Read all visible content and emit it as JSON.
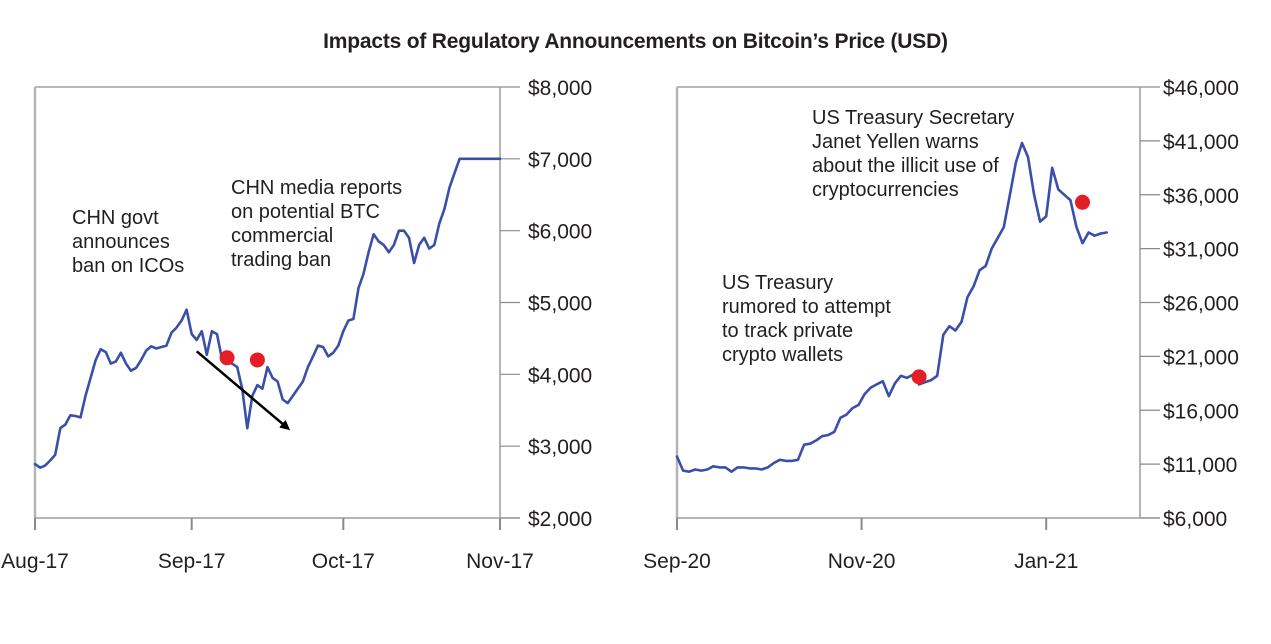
{
  "title": "Impacts of Regulatory Announcements on Bitcoin’s Price (USD)",
  "colors": {
    "line": "#3a4fa8",
    "marker": "#e31e24",
    "arrow": "#000000",
    "axis": "#8a8a8a",
    "text": "#231f20"
  },
  "chart_data": [
    {
      "type": "line",
      "title": "",
      "xlabel": "",
      "ylabel": "",
      "x_unit": "days since 2017-08-01",
      "x_range": [
        0,
        92
      ],
      "ylim": [
        2000,
        8000
      ],
      "y_ticks": [
        2000,
        3000,
        4000,
        5000,
        6000,
        7000,
        8000
      ],
      "y_tick_labels": [
        "$2,000",
        "$3,000",
        "$4,000",
        "$5,000",
        "$6,000",
        "$7,000",
        "$8,000"
      ],
      "y_axis_side": "right",
      "x_ticks": [
        0,
        31,
        61,
        92
      ],
      "x_tick_labels": [
        "Aug-17",
        "Sep-17",
        "Oct-17",
        "Nov-17"
      ],
      "grid": false,
      "series": [
        {
          "name": "BTC price",
          "x": [
            0,
            1,
            2,
            3,
            4,
            5,
            6,
            7,
            8,
            9,
            10,
            11,
            12,
            13,
            14,
            15,
            16,
            17,
            18,
            19,
            20,
            21,
            22,
            23,
            24,
            25,
            26,
            27,
            28,
            29,
            30,
            31,
            32,
            33,
            34,
            35,
            36,
            37,
            38,
            39,
            40,
            41,
            42,
            43,
            44,
            45,
            46,
            47,
            48,
            49,
            50,
            51,
            52,
            53,
            54,
            55,
            56,
            57,
            58,
            59,
            60,
            61,
            62,
            63,
            64,
            65,
            66,
            67,
            68,
            69,
            70,
            71,
            72,
            73,
            74,
            75,
            76,
            77,
            78,
            79,
            80,
            81,
            82,
            83,
            84,
            85,
            86,
            87,
            88,
            89,
            90,
            91,
            92
          ],
          "y": [
            2750,
            2700,
            2730,
            2800,
            2880,
            3250,
            3300,
            3430,
            3420,
            3400,
            3700,
            3950,
            4200,
            4350,
            4310,
            4150,
            4180,
            4300,
            4150,
            4050,
            4090,
            4200,
            4330,
            4390,
            4360,
            4380,
            4400,
            4580,
            4650,
            4750,
            4900,
            4560,
            4480,
            4600,
            4270,
            4600,
            4560,
            4210,
            4170,
            4150,
            4100,
            3800,
            3250,
            3700,
            3850,
            3800,
            4100,
            3950,
            3900,
            3650,
            3600,
            3700,
            3800,
            3900,
            4100,
            4250,
            4400,
            4380,
            4250,
            4300,
            4400,
            4600,
            4750,
            4770,
            5200,
            5400,
            5700,
            5950,
            5850,
            5800,
            5700,
            5800,
            6000,
            6000,
            5900,
            5550,
            5800,
            5900,
            5750,
            5800,
            6100,
            6300,
            6600,
            6800,
            7000,
            7000,
            7000,
            7000,
            7000,
            7000,
            7000,
            7000,
            7000
          ]
        }
      ],
      "markers": [
        {
          "x": 38,
          "y": 4230,
          "label": "CHN govt announces ban on ICOs"
        },
        {
          "x": 44,
          "y": 4200,
          "label": "CHN media reports on potential BTC commercial trading ban"
        }
      ],
      "annotations": [
        {
          "lines": [
            "CHN govt",
            "announces",
            "ban on ICOs"
          ]
        },
        {
          "lines": [
            "CHN media reports",
            "on potential BTC",
            "commercial",
            "trading ban"
          ]
        }
      ],
      "arrow": {
        "from": {
          "x": 32,
          "y": 4320
        },
        "to": {
          "x": 50,
          "y": 3250
        }
      }
    },
    {
      "type": "line",
      "title": "",
      "xlabel": "",
      "ylabel": "",
      "x_unit": "days since 2020-09-01",
      "x_range": [
        0,
        153
      ],
      "ylim": [
        6000,
        46000
      ],
      "y_ticks": [
        6000,
        11000,
        16000,
        21000,
        26000,
        31000,
        36000,
        41000,
        46000
      ],
      "y_tick_labels": [
        "$6,000",
        "$11,000",
        "$16,000",
        "$21,000",
        "$26,000",
        "$31,000",
        "$36,000",
        "$41,000",
        "$46,000"
      ],
      "y_axis_side": "right",
      "x_ticks": [
        0,
        61,
        122
      ],
      "x_tick_labels": [
        "Sep-20",
        "Nov-20",
        "Jan-21"
      ],
      "grid": false,
      "series": [
        {
          "name": "BTC price",
          "x": [
            0,
            2,
            4,
            6,
            8,
            10,
            12,
            14,
            16,
            18,
            20,
            22,
            24,
            26,
            28,
            30,
            32,
            34,
            36,
            38,
            40,
            42,
            44,
            46,
            48,
            50,
            52,
            54,
            56,
            58,
            60,
            62,
            64,
            66,
            68,
            70,
            72,
            74,
            76,
            78,
            80,
            82,
            84,
            86,
            88,
            90,
            92,
            94,
            96,
            98,
            100,
            102,
            104,
            106,
            108,
            110,
            112,
            114,
            116,
            118,
            120,
            122,
            124,
            126,
            128,
            130,
            132,
            134,
            136,
            138,
            140,
            142
          ],
          "y": [
            11700,
            10400,
            10300,
            10500,
            10400,
            10500,
            10800,
            10700,
            10700,
            10300,
            10700,
            10700,
            10600,
            10600,
            10500,
            10700,
            11100,
            11400,
            11300,
            11300,
            11400,
            12800,
            12900,
            13200,
            13600,
            13700,
            14000,
            15300,
            15600,
            16200,
            16500,
            17500,
            18100,
            18400,
            18700,
            17300,
            18500,
            19200,
            19000,
            19300,
            18400,
            18600,
            18800,
            19200,
            23000,
            23800,
            23400,
            24200,
            26500,
            27500,
            29000,
            29400,
            31000,
            32000,
            33000,
            36000,
            39000,
            40800,
            39500,
            36000,
            33500,
            34000,
            38500,
            36500,
            36000,
            35500,
            33000,
            31500,
            32500,
            32200,
            32400,
            32500
          ]
        }
      ],
      "markers": [
        {
          "x": 80,
          "y": 19100,
          "label": "US Treasury rumored to attempt to track private crypto wallets"
        },
        {
          "x": 134,
          "y": 35300,
          "label": "US Treasury Secretary Janet Yellen warns about the illicit use of cryptocurrencies"
        }
      ],
      "annotations": [
        {
          "lines": [
            "US Treasury Secretary",
            "Janet Yellen warns",
            "about the illicit use of",
            "cryptocurrencies"
          ]
        },
        {
          "lines": [
            "US Treasury",
            "rumored to attempt",
            "to track private",
            "crypto wallets"
          ]
        }
      ]
    }
  ]
}
